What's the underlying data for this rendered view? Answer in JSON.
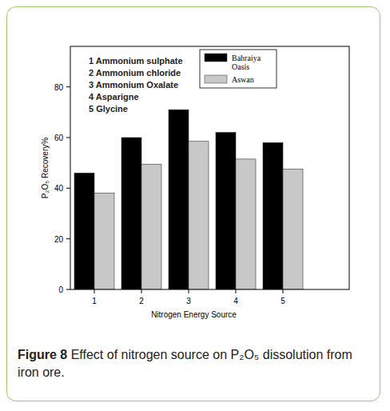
{
  "chart_data": {
    "type": "bar",
    "title": "Figure 8",
    "subtitle": "Effect of nitrogen source on P₂O₅ dissolution from iron ore.",
    "x_label": "Nitrogen Energy Source",
    "y_label": "P₂O₅ Recovery%",
    "annotations": [
      "1 Ammonium sulphate",
      "2 Ammonium chloride",
      "3 Ammonium Oxalate",
      "4 Asparigne",
      "5 Glycine"
    ],
    "categories": [
      "1",
      "2",
      "3",
      "4",
      "5"
    ],
    "series": [
      {
        "name": "Bahraiya Oasis",
        "color": "#000000",
        "values": [
          46,
          60,
          71,
          62,
          58
        ]
      },
      {
        "name": "Aswan",
        "color": "#c8c8c8",
        "values": [
          38,
          49.5,
          58.5,
          51.5,
          47.5
        ]
      }
    ],
    "ylim": [
      0,
      96
    ],
    "yticks": [
      0,
      20,
      40,
      60,
      80
    ],
    "grid": false,
    "legend": "top-right"
  }
}
